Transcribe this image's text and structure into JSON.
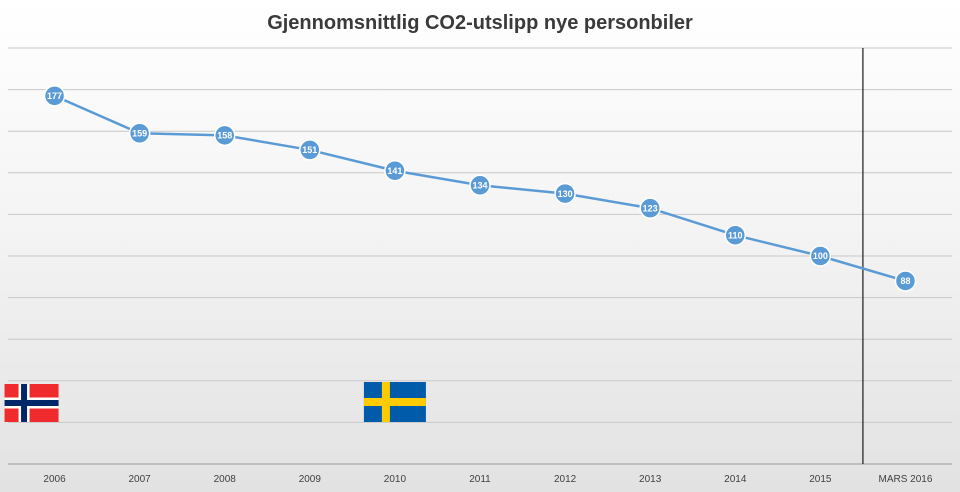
{
  "chart_data": {
    "type": "line",
    "title": "Gjennomsnittlig CO2-utslipp nye personbiler",
    "xlabel": "",
    "ylabel": "",
    "categories": [
      "2006",
      "2007",
      "2008",
      "2009",
      "2010",
      "2011",
      "2012",
      "2013",
      "2014",
      "2015",
      "MARS 2016"
    ],
    "series": [
      {
        "values": [
          177,
          159,
          158,
          151,
          141,
          134,
          130,
          123,
          110,
          100,
          88
        ]
      }
    ],
    "ylim": [
      0,
      200
    ],
    "grid": true,
    "legend": "none",
    "data_labels": true,
    "colors": {
      "line": "#5b9bd5",
      "marker": "#5b9bd5",
      "marker_text": "#ffffff",
      "grid": "#c8c8c8",
      "separator": "#1a1a1a"
    },
    "flags": [
      {
        "icon": "norway-flag-icon",
        "position_category": "2006"
      },
      {
        "icon": "sweden-flag-icon",
        "position_category": "2010"
      }
    ]
  }
}
